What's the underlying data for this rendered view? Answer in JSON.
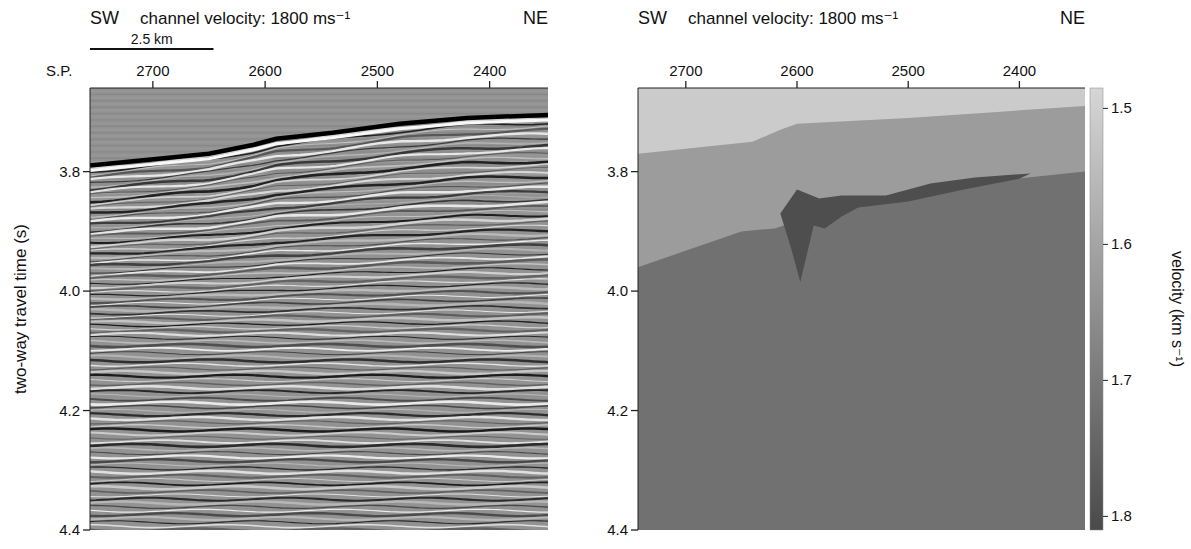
{
  "chart_data": [
    {
      "type": "seismic_section",
      "title": "channel velocity: 1800 ms⁻¹",
      "left_label": "SW",
      "right_label": "NE",
      "x_label": "S.P.",
      "y_label": "two-way travel time (s)",
      "xlim": [
        2756,
        2348
      ],
      "ylim": [
        3.66,
        4.4
      ],
      "xticks": [
        2700,
        2600,
        2500,
        2400
      ],
      "yticks": [
        3.8,
        {
          "value": 4,
          "label": "4.0"
        },
        4.2,
        4.4
      ],
      "scale_bar": {
        "label": "2.5 km",
        "x": [
          2756,
          2646
        ]
      },
      "seafloor": {
        "x": [
          2756,
          2650,
          2610,
          2590,
          2540,
          2480,
          2420,
          2348
        ],
        "t": [
          3.79,
          3.77,
          3.755,
          3.745,
          3.735,
          3.72,
          3.71,
          3.705
        ]
      }
    },
    {
      "type": "velocity_model",
      "title": "channel velocity: 1800 ms⁻¹",
      "left_label": "SW",
      "right_label": "NE",
      "xlim": [
        2743,
        2341
      ],
      "ylim": [
        3.66,
        4.4
      ],
      "xticks": [
        2700,
        2600,
        2500,
        2400
      ],
      "yticks": [
        3.8,
        {
          "value": 4,
          "label": "4.0"
        },
        4.2,
        4.4
      ],
      "layers": [
        {
          "velocity": 1.72,
          "base_x": [
            2743,
            2341
          ],
          "base_t": [
            4.4,
            4.4
          ]
        },
        {
          "velocity": 1.62,
          "base_x": [
            2743,
            2650,
            2620,
            2580,
            2500,
            2420,
            2341
          ],
          "base_t": [
            3.96,
            3.9,
            3.895,
            3.87,
            3.845,
            3.815,
            3.8
          ]
        },
        {
          "velocity": 1.51,
          "base_x": [
            2743,
            2640,
            2615,
            2600,
            2500,
            2420,
            2341
          ],
          "base_t": [
            3.77,
            3.75,
            3.73,
            3.72,
            3.71,
            3.7,
            3.69
          ]
        }
      ],
      "channel": {
        "velocity": 1.8,
        "x": [
          2615,
          2600,
          2580,
          2560,
          2520,
          2480,
          2440,
          2390,
          2400,
          2450,
          2500,
          2545,
          2560,
          2575,
          2585,
          2597,
          2605
        ],
        "t": [
          3.87,
          3.83,
          3.845,
          3.84,
          3.84,
          3.82,
          3.81,
          3.803,
          3.812,
          3.83,
          3.85,
          3.86,
          3.875,
          3.895,
          3.89,
          3.985,
          3.93
        ]
      },
      "colorbar": {
        "label": "velocity (km s⁻¹)",
        "clim": [
          1.485,
          1.81
        ],
        "ticks": [
          1.5,
          1.6,
          1.7,
          1.8
        ]
      }
    }
  ]
}
